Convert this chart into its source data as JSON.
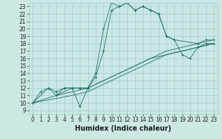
{
  "xlabel": "Humidex (Indice chaleur)",
  "xlim": [
    -0.5,
    23.5
  ],
  "ylim": [
    8.5,
    23.5
  ],
  "yticks": [
    9,
    10,
    11,
    12,
    13,
    14,
    15,
    16,
    17,
    18,
    19,
    20,
    21,
    22,
    23
  ],
  "xticks": [
    0,
    1,
    2,
    3,
    4,
    5,
    6,
    7,
    8,
    9,
    10,
    11,
    12,
    13,
    14,
    15,
    16,
    17,
    18,
    19,
    20,
    21,
    22,
    23
  ],
  "bg_color": "#cce8e4",
  "grid_color": "#99cccc",
  "line_color": "#1a6b5a",
  "font_color": "#1a1a1a",
  "tick_fontsize": 5.5,
  "label_fontsize": 7,
  "curve1_x": [
    0,
    1,
    2,
    3,
    4,
    5,
    6,
    7,
    8,
    9,
    10,
    11,
    12,
    13,
    14,
    15,
    16,
    17,
    18,
    21,
    22,
    23
  ],
  "curve1_y": [
    10,
    11.5,
    12,
    11,
    12,
    12,
    9.5,
    12,
    14,
    20,
    23.5,
    23,
    23.5,
    22.5,
    23,
    22.5,
    22,
    19,
    18.5,
    18,
    18.5,
    18.5
  ],
  "curve2_x": [
    0,
    2,
    3,
    4,
    5,
    6,
    7,
    8,
    9,
    10,
    11,
    12,
    13,
    14,
    15,
    16,
    17,
    18,
    19,
    20,
    21,
    22,
    23
  ],
  "curve2_y": [
    10,
    12,
    11.5,
    12,
    12,
    12,
    12,
    13.5,
    17,
    22.5,
    23,
    23.5,
    22.5,
    23,
    22.5,
    22,
    19,
    18.5,
    16.5,
    16,
    17.5,
    18,
    18
  ],
  "diag1_x": [
    0,
    3,
    5,
    7,
    9,
    11,
    13,
    15,
    17,
    19,
    21,
    23
  ],
  "diag1_y": [
    10,
    11,
    11.5,
    12,
    13,
    14,
    15,
    16,
    17,
    17.5,
    18,
    18.5
  ],
  "diag2_x": [
    0,
    5,
    7,
    9,
    11,
    13,
    15,
    17,
    19,
    21,
    23
  ],
  "diag2_y": [
    10,
    11,
    11.5,
    12.5,
    13.5,
    14.5,
    15.5,
    16.5,
    17,
    17.5,
    18
  ],
  "diag3_x": [
    3,
    5,
    6,
    7,
    9,
    11,
    13,
    15,
    17,
    19,
    21,
    23
  ],
  "diag3_y": [
    11,
    12,
    12,
    12,
    13,
    14,
    15,
    16,
    16.5,
    17,
    17.5,
    18
  ]
}
